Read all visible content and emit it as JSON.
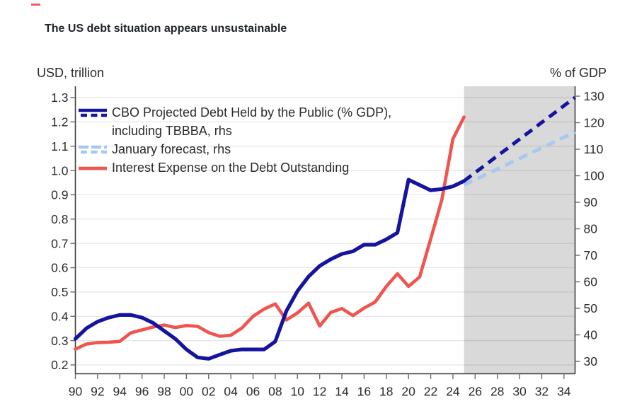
{
  "title": "The US debt situation appears unsustainable",
  "colors": {
    "navy": "#14149E",
    "lightblue": "#A6C9EF",
    "red": "#F0544F",
    "shade": "#D9D9D9",
    "text": "#2B2B2B",
    "title": "#20242C"
  },
  "axes": {
    "left_title": "USD, trillion",
    "right_title": "% of GDP",
    "left_ticks": [
      "1.3",
      "1.2",
      "1.1",
      "1.0",
      "0.9",
      "0.8",
      "0.7",
      "0.6",
      "0.5",
      "0.4",
      "0.3",
      "0.2"
    ],
    "right_ticks": [
      "130",
      "120",
      "110",
      "100",
      "90",
      "80",
      "70",
      "60",
      "50",
      "40",
      "30"
    ],
    "x_ticks": [
      "90",
      "92",
      "94",
      "96",
      "98",
      "00",
      "02",
      "04",
      "06",
      "08",
      "10",
      "12",
      "14",
      "16",
      "18",
      "20",
      "22",
      "24",
      "26",
      "28",
      "30",
      "32",
      "34"
    ]
  },
  "legend": {
    "items": [
      {
        "line1": "CBO Projected Debt Held by the Public (% GDP),",
        "line2": "including TBBBA, rhs",
        "color": "#14149E"
      },
      {
        "label": "January forecast, rhs",
        "color": "#A6C9EF"
      },
      {
        "label": "Interest Expense on the Debt Outstanding",
        "color": "#F0544F"
      }
    ]
  },
  "chart_data": {
    "type": "line",
    "x_range": [
      1990,
      2035
    ],
    "left_ylabel": "USD, trillion",
    "right_ylabel": "% of GDP",
    "left_ylim": [
      0.2,
      1.3
    ],
    "right_ylim": [
      30,
      130
    ],
    "grid": "horizontal",
    "shaded_region": {
      "from": 2025,
      "to": 2035,
      "color": "#D9D9D9"
    },
    "series": [
      {
        "name": "CBO Projected Debt Held by the Public (% GDP), including TBBBA, rhs",
        "axis": "right",
        "units": "% of GDP",
        "color": "#14149E",
        "style": "solid, dashed projection",
        "x": [
          1990,
          1991,
          1992,
          1993,
          1994,
          1995,
          1996,
          1997,
          1998,
          1999,
          2000,
          2001,
          2002,
          2003,
          2004,
          2005,
          2006,
          2007,
          2008,
          2009,
          2010,
          2011,
          2012,
          2013,
          2014,
          2015,
          2016,
          2017,
          2018,
          2019,
          2020,
          2021,
          2022,
          2023,
          2024,
          2025
        ],
        "values": [
          38.5,
          42.5,
          45,
          46.5,
          47.5,
          47.5,
          46.5,
          44.5,
          41.5,
          38.5,
          34.5,
          31.5,
          31,
          32.5,
          34,
          34.5,
          34.5,
          34.5,
          37.5,
          49,
          56.5,
          62,
          66,
          68.5,
          70.5,
          71.5,
          74,
          74,
          76,
          78.5,
          98.5,
          96.5,
          94.5,
          95,
          96,
          98
        ],
        "projection_x": [
          2025,
          2026,
          2027,
          2028,
          2029,
          2030,
          2031,
          2032,
          2033,
          2034,
          2035
        ],
        "projection_values": [
          98,
          101.2,
          104.3,
          107.5,
          110.6,
          113.8,
          116.9,
          120.1,
          123.2,
          126.4,
          129.5
        ]
      },
      {
        "name": "January forecast, rhs",
        "axis": "right",
        "units": "% of GDP",
        "color": "#A6C9EF",
        "style": "dashed",
        "x": [
          2025,
          2026,
          2027,
          2028,
          2029,
          2030,
          2031,
          2032,
          2033,
          2034,
          2035
        ],
        "values": [
          96.5,
          98.5,
          100.5,
          102.5,
          104.5,
          106.5,
          108.5,
          110.5,
          112.5,
          114.5,
          116.5
        ]
      },
      {
        "name": "Interest Expense on the Debt Outstanding",
        "axis": "left",
        "units": "USD trillion",
        "color": "#F0544F",
        "style": "solid",
        "x": [
          1990,
          1991,
          1992,
          1993,
          1994,
          1995,
          1996,
          1997,
          1998,
          1999,
          2000,
          2001,
          2002,
          2003,
          2004,
          2005,
          2006,
          2007,
          2008,
          2009,
          2010,
          2011,
          2012,
          2013,
          2014,
          2015,
          2016,
          2017,
          2018,
          2019,
          2020,
          2021,
          2022,
          2023,
          2024,
          2025
        ],
        "values": [
          0.265,
          0.286,
          0.292,
          0.293,
          0.297,
          0.332,
          0.344,
          0.356,
          0.364,
          0.354,
          0.362,
          0.359,
          0.333,
          0.318,
          0.322,
          0.352,
          0.4,
          0.43,
          0.451,
          0.385,
          0.414,
          0.454,
          0.36,
          0.416,
          0.432,
          0.403,
          0.434,
          0.459,
          0.523,
          0.575,
          0.523,
          0.562,
          0.718,
          0.879,
          1.13,
          1.22
        ]
      }
    ]
  }
}
